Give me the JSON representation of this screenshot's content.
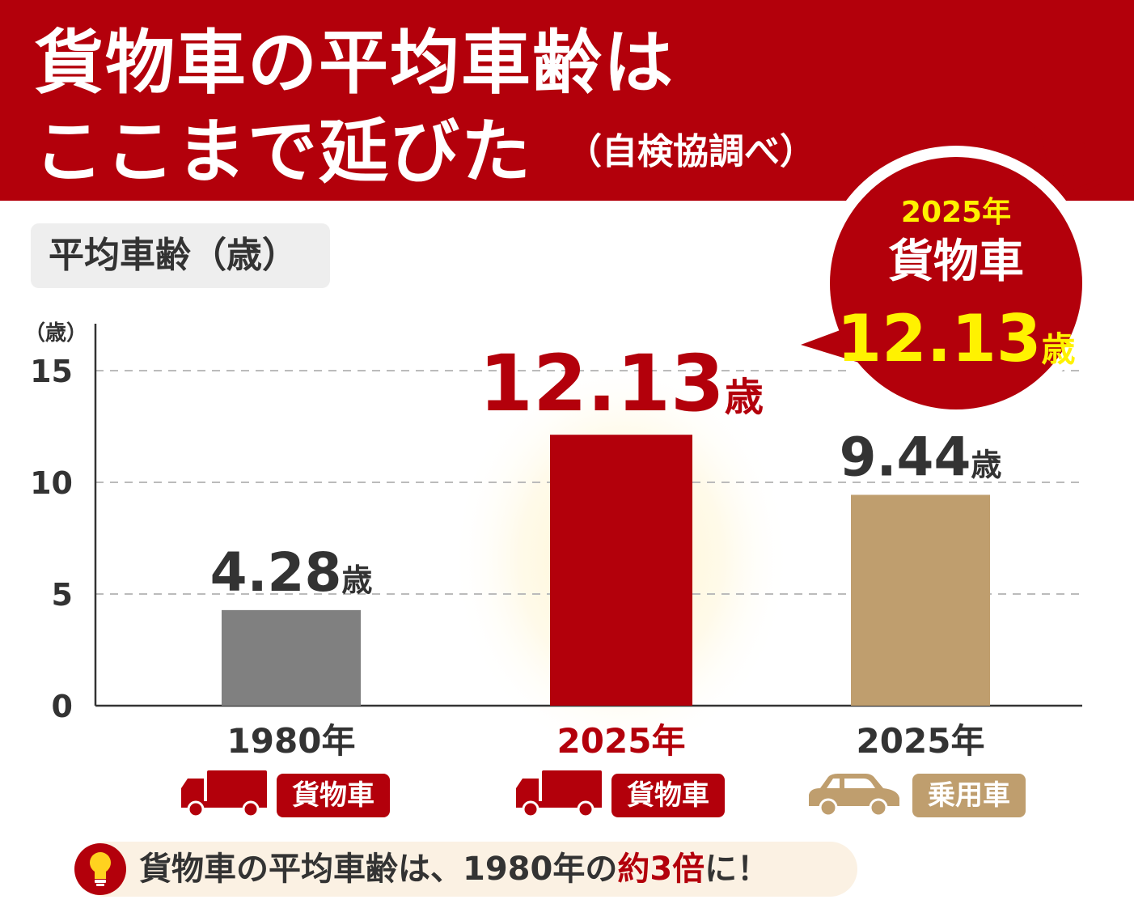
{
  "header": {
    "title_line1": "貨物車の平均車齢は",
    "title_line2": "ここまで延びた",
    "source": "（自検協調べ）"
  },
  "chart_label": "平均車齢（歳）",
  "callout": {
    "year": "2025年",
    "vehicle": "貨物車",
    "value": "12.13",
    "unit": "歳"
  },
  "footer": {
    "text_before": "貨物車の平均車齢は、1980年の",
    "highlight": "約3倍",
    "text_after": "に！"
  },
  "colors": {
    "banner": "#b3000b",
    "bar_1980_truck": "#808080",
    "bar_2025_truck": "#b3000b",
    "bar_2025_car": "#bf9e6e",
    "callout_value": "#fff200"
  },
  "chart_data": {
    "type": "bar",
    "ylabel": "（歳）",
    "ylim": [
      0,
      15
    ],
    "yticks": [
      0,
      5,
      10,
      15
    ],
    "grid": true,
    "unit": "歳",
    "categories": [
      {
        "year": "1980年",
        "vehicle": "貨物車",
        "icon": "truck-icon"
      },
      {
        "year": "2025年",
        "vehicle": "貨物車",
        "icon": "truck-icon"
      },
      {
        "year": "2025年",
        "vehicle": "乗用車",
        "icon": "car-icon"
      }
    ],
    "values": [
      4.28,
      12.13,
      9.44
    ],
    "value_labels": [
      "4.28",
      "12.13",
      "9.44"
    ]
  }
}
